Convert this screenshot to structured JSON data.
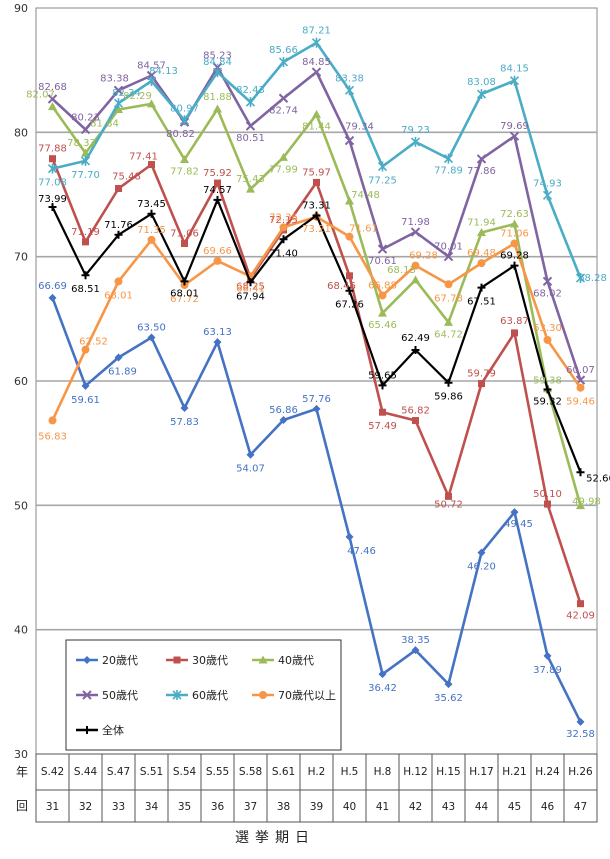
{
  "chart_data": {
    "type": "line",
    "title": "",
    "xlabel": "選挙期日",
    "ylabel": "",
    "row_labels": [
      "年",
      "回"
    ],
    "categories": [
      "S.42",
      "S.44",
      "S.47",
      "S.51",
      "S.54",
      "S.55",
      "S.58",
      "S.61",
      "H.2",
      "H.5",
      "H.8",
      "H.12",
      "H.15",
      "H.17",
      "H.21",
      "H.24",
      "H.26"
    ],
    "sessions": [
      "31",
      "32",
      "33",
      "34",
      "35",
      "36",
      "37",
      "38",
      "39",
      "40",
      "41",
      "42",
      "43",
      "44",
      "45",
      "46",
      "47"
    ],
    "ylim": [
      30,
      90
    ],
    "yticks": [
      30,
      40,
      50,
      60,
      70,
      80,
      90
    ],
    "grid": true,
    "legend_position": "bottom-left",
    "series": [
      {
        "name": "20歳代",
        "color": "#4472c4",
        "marker": "diamond",
        "values": [
          66.69,
          59.61,
          61.89,
          63.5,
          57.83,
          63.13,
          54.07,
          56.86,
          57.76,
          47.46,
          36.42,
          38.35,
          35.62,
          46.2,
          49.45,
          37.89,
          32.58
        ]
      },
      {
        "name": "30歳代",
        "color": "#c0504d",
        "marker": "square",
        "values": [
          77.88,
          71.19,
          75.48,
          77.41,
          71.06,
          75.92,
          68.25,
          72.15,
          75.97,
          68.46,
          57.49,
          56.82,
          50.72,
          59.79,
          63.87,
          50.1,
          42.09
        ]
      },
      {
        "name": "40歳代",
        "color": "#9bbb59",
        "marker": "triangle",
        "values": [
          82.07,
          78.33,
          81.84,
          82.29,
          77.82,
          81.88,
          75.43,
          77.99,
          81.44,
          74.48,
          65.46,
          68.13,
          64.72,
          71.94,
          72.63,
          59.38,
          49.98
        ]
      },
      {
        "name": "50歳代",
        "color": "#8064a2",
        "marker": "x",
        "values": [
          82.68,
          80.23,
          83.38,
          84.57,
          80.82,
          85.23,
          80.51,
          82.74,
          84.85,
          79.34,
          70.61,
          71.98,
          70.01,
          77.86,
          79.69,
          68.02,
          60.07
        ]
      },
      {
        "name": "60歳代",
        "color": "#4bacc6",
        "marker": "star",
        "values": [
          77.08,
          77.7,
          82.34,
          84.13,
          80.97,
          84.84,
          82.43,
          85.66,
          87.21,
          83.38,
          77.25,
          79.23,
          77.89,
          83.08,
          84.15,
          74.93,
          68.28
        ]
      },
      {
        "name": "70歳代以上",
        "color": "#f79646",
        "marker": "circle",
        "values": [
          56.83,
          62.52,
          68.01,
          71.35,
          67.72,
          69.66,
          68.41,
          72.36,
          73.21,
          71.61,
          66.88,
          69.28,
          67.78,
          69.48,
          71.06,
          63.3,
          59.46
        ]
      },
      {
        "name": "全体",
        "color": "#000000",
        "marker": "plus",
        "values": [
          73.99,
          68.51,
          71.76,
          73.45,
          68.01,
          74.57,
          67.94,
          71.4,
          73.31,
          67.26,
          59.65,
          62.49,
          59.86,
          67.51,
          69.28,
          59.32,
          52.66
        ]
      }
    ]
  }
}
